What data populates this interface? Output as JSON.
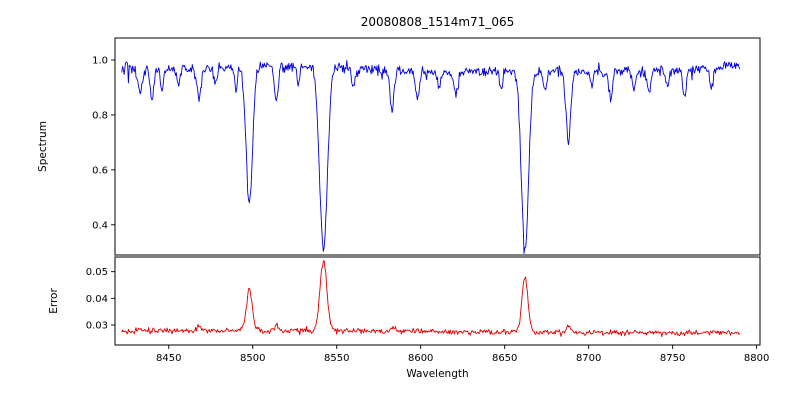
{
  "chart_data": {
    "type": "line",
    "title": "20080808_1514m71_065",
    "xlabel": "Wavelength",
    "xlim": [
      8418,
      8802
    ],
    "x_start": 8422,
    "x_end": 8790,
    "x_step": 0.5,
    "xticks": [
      8450,
      8500,
      8550,
      8600,
      8650,
      8700,
      8750,
      8800
    ],
    "xtick_labels": [
      "8450",
      "8500",
      "8550",
      "8600",
      "8650",
      "8700",
      "8750",
      "8800"
    ],
    "noise_seed": 20080808,
    "background_color": "#ffffff",
    "axis_color": "#000000",
    "subplots": [
      {
        "name": "spectrum",
        "ylabel": "Spectrum",
        "ylim": [
          0.29,
          1.08
        ],
        "yticks": [
          0.4,
          0.6,
          0.8,
          1.0
        ],
        "ytick_labels": [
          "0.4",
          "0.6",
          "0.8",
          "1.0"
        ],
        "color": "#0000dd",
        "continuum": 0.975,
        "noise_std": 0.013,
        "absorption_lines": [
          {
            "center": 8433.0,
            "depth": 0.09,
            "width": 1.3
          },
          {
            "center": 8440.0,
            "depth": 0.11,
            "width": 1.1
          },
          {
            "center": 8446.0,
            "depth": 0.07,
            "width": 0.9
          },
          {
            "center": 8456.0,
            "depth": 0.06,
            "width": 0.9
          },
          {
            "center": 8468.0,
            "depth": 0.11,
            "width": 1.4
          },
          {
            "center": 8478.0,
            "depth": 0.06,
            "width": 0.9
          },
          {
            "center": 8490.0,
            "depth": 0.07,
            "width": 0.9
          },
          {
            "center": 8498.0,
            "depth": 0.5,
            "width": 1.9
          },
          {
            "center": 8514.0,
            "depth": 0.13,
            "width": 1.1
          },
          {
            "center": 8527.0,
            "depth": 0.07,
            "width": 0.9
          },
          {
            "center": 8542.1,
            "depth": 0.665,
            "width": 2.3
          },
          {
            "center": 8560.0,
            "depth": 0.06,
            "width": 0.9
          },
          {
            "center": 8583.0,
            "depth": 0.13,
            "width": 1.2
          },
          {
            "center": 8598.0,
            "depth": 0.09,
            "width": 1.1
          },
          {
            "center": 8611.0,
            "depth": 0.06,
            "width": 0.9
          },
          {
            "center": 8621.0,
            "depth": 0.09,
            "width": 1.1
          },
          {
            "center": 8648.0,
            "depth": 0.06,
            "width": 0.9
          },
          {
            "center": 8662.1,
            "depth": 0.66,
            "width": 2.1
          },
          {
            "center": 8674.0,
            "depth": 0.07,
            "width": 0.9
          },
          {
            "center": 8688.0,
            "depth": 0.25,
            "width": 1.4
          },
          {
            "center": 8702.0,
            "depth": 0.06,
            "width": 0.9
          },
          {
            "center": 8713.0,
            "depth": 0.09,
            "width": 1.1
          },
          {
            "center": 8727.0,
            "depth": 0.06,
            "width": 0.9
          },
          {
            "center": 8736.0,
            "depth": 0.08,
            "width": 1.0
          },
          {
            "center": 8747.0,
            "depth": 0.06,
            "width": 0.9
          },
          {
            "center": 8757.0,
            "depth": 0.09,
            "width": 1.1
          },
          {
            "center": 8773.0,
            "depth": 0.08,
            "width": 1.0
          }
        ]
      },
      {
        "name": "error",
        "ylabel": "Error",
        "ylim": [
          0.0225,
          0.0555
        ],
        "yticks": [
          0.03,
          0.04,
          0.05
        ],
        "ytick_labels": [
          "0.03",
          "0.04",
          "0.05"
        ],
        "color": "#dd0000",
        "baseline": 0.0275,
        "noise_std": 0.0005,
        "peaks": [
          {
            "center": 8433.0,
            "amplitude": 0.001,
            "width": 1.2
          },
          {
            "center": 8468.0,
            "amplitude": 0.0015,
            "width": 1.3
          },
          {
            "center": 8498.0,
            "amplitude": 0.0155,
            "width": 1.7
          },
          {
            "center": 8514.0,
            "amplitude": 0.002,
            "width": 1.2
          },
          {
            "center": 8542.1,
            "amplitude": 0.0265,
            "width": 2.0
          },
          {
            "center": 8583.0,
            "amplitude": 0.0015,
            "width": 1.2
          },
          {
            "center": 8662.1,
            "amplitude": 0.0205,
            "width": 1.8
          },
          {
            "center": 8688.0,
            "amplitude": 0.0025,
            "width": 1.4
          }
        ]
      }
    ]
  }
}
